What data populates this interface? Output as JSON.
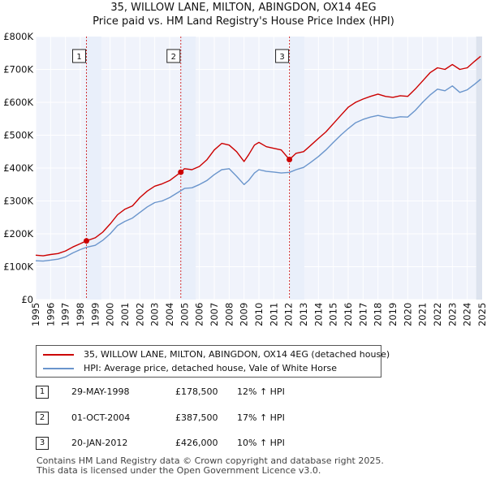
{
  "chart_data": {
    "type": "line",
    "title": "35, WILLOW LANE, MILTON, ABINGDON, OX14 4EG",
    "subtitle": "Price paid vs. HM Land Registry's House Price Index (HPI)",
    "xlim": [
      1995,
      2025
    ],
    "ylim": [
      0,
      800000
    ],
    "x_ticks": [
      "1995",
      "1996",
      "1997",
      "1998",
      "1999",
      "2000",
      "2001",
      "2002",
      "2003",
      "2004",
      "2005",
      "2006",
      "2007",
      "2008",
      "2009",
      "2010",
      "2011",
      "2012",
      "2013",
      "2014",
      "2015",
      "2016",
      "2017",
      "2018",
      "2019",
      "2020",
      "2021",
      "2022",
      "2023",
      "2024",
      "2025"
    ],
    "y_ticks": [
      {
        "value": 0,
        "label": "£0"
      },
      {
        "value": 100000,
        "label": "£100K"
      },
      {
        "value": 200000,
        "label": "£200K"
      },
      {
        "value": 300000,
        "label": "£300K"
      },
      {
        "value": 400000,
        "label": "£400K"
      },
      {
        "value": 500000,
        "label": "£500K"
      },
      {
        "value": 600000,
        "label": "£600K"
      },
      {
        "value": 700000,
        "label": "£700K"
      },
      {
        "value": 800000,
        "label": "£800K"
      }
    ],
    "series": [
      {
        "name": "35, WILLOW LANE, MILTON, ABINGDON, OX14 4EG (detached house)",
        "color": "#cc0000",
        "x": [
          1995,
          1995.5,
          1996,
          1996.5,
          1997,
          1997.5,
          1998,
          1998.41,
          1999,
          1999.5,
          2000,
          2000.5,
          2001,
          2001.5,
          2002,
          2002.5,
          2003,
          2003.5,
          2004,
          2004.75,
          2005,
          2005.5,
          2006,
          2006.5,
          2007,
          2007.5,
          2008,
          2008.5,
          2009,
          2009.3,
          2009.7,
          2010,
          2010.5,
          2011,
          2011.5,
          2012.05,
          2012.5,
          2013,
          2013.5,
          2014,
          2014.5,
          2015,
          2015.5,
          2016,
          2016.5,
          2017,
          2017.5,
          2018,
          2018.5,
          2019,
          2019.5,
          2020,
          2020.5,
          2021,
          2021.5,
          2022,
          2022.5,
          2023,
          2023.5,
          2024,
          2024.5,
          2024.9
        ],
        "values": [
          135000,
          133000,
          137000,
          140000,
          148000,
          160000,
          170000,
          178500,
          188000,
          205000,
          230000,
          258000,
          275000,
          285000,
          310000,
          330000,
          345000,
          352000,
          362000,
          387500,
          398000,
          395000,
          405000,
          425000,
          455000,
          475000,
          470000,
          450000,
          420000,
          440000,
          470000,
          478000,
          465000,
          460000,
          455000,
          426000,
          445000,
          450000,
          470000,
          490000,
          510000,
          535000,
          560000,
          585000,
          600000,
          610000,
          618000,
          625000,
          618000,
          615000,
          620000,
          618000,
          640000,
          665000,
          690000,
          705000,
          700000,
          715000,
          700000,
          705000,
          725000,
          740000
        ]
      },
      {
        "name": "HPI: Average price, detached house, Vale of White Horse",
        "color": "#6a95cc",
        "x": [
          1995,
          1995.5,
          1996,
          1996.5,
          1997,
          1997.5,
          1998,
          1998.41,
          1999,
          1999.5,
          2000,
          2000.5,
          2001,
          2001.5,
          2002,
          2002.5,
          2003,
          2003.5,
          2004,
          2004.75,
          2005,
          2005.5,
          2006,
          2006.5,
          2007,
          2007.5,
          2008,
          2008.5,
          2009,
          2009.3,
          2009.7,
          2010,
          2010.5,
          2011,
          2011.5,
          2012.05,
          2012.5,
          2013,
          2013.5,
          2014,
          2014.5,
          2015,
          2015.5,
          2016,
          2016.5,
          2017,
          2017.5,
          2018,
          2018.5,
          2019,
          2019.5,
          2020,
          2020.5,
          2021,
          2021.5,
          2022,
          2022.5,
          2023,
          2023.5,
          2024,
          2024.5,
          2024.9
        ],
        "values": [
          118000,
          117000,
          120000,
          123000,
          130000,
          142000,
          152000,
          159000,
          165000,
          180000,
          200000,
          225000,
          238000,
          248000,
          265000,
          282000,
          295000,
          300000,
          310000,
          331000,
          338000,
          340000,
          350000,
          362000,
          380000,
          395000,
          398000,
          375000,
          350000,
          362000,
          385000,
          395000,
          390000,
          388000,
          385000,
          387000,
          395000,
          402000,
          418000,
          435000,
          455000,
          478000,
          500000,
          520000,
          538000,
          548000,
          555000,
          560000,
          555000,
          552000,
          556000,
          555000,
          575000,
          600000,
          622000,
          640000,
          635000,
          650000,
          630000,
          638000,
          655000,
          670000
        ]
      }
    ],
    "sales": [
      {
        "label": "1",
        "x": 1998.41,
        "value": 178500
      },
      {
        "label": "2",
        "x": 2004.75,
        "value": 387500
      },
      {
        "label": "3",
        "x": 2012.05,
        "value": 426000
      }
    ]
  },
  "legend": {
    "property_label": "35, WILLOW LANE, MILTON, ABINGDON, OX14 4EG (detached house)",
    "hpi_label": "HPI: Average price, detached house, Vale of White Horse"
  },
  "transactions": [
    {
      "num": "1",
      "date": "29-MAY-1998",
      "price": "£178,500",
      "hpi": "12% ↑ HPI"
    },
    {
      "num": "2",
      "date": "01-OCT-2004",
      "price": "£387,500",
      "hpi": "17% ↑ HPI"
    },
    {
      "num": "3",
      "date": "20-JAN-2012",
      "price": "£426,000",
      "hpi": "10% ↑ HPI"
    }
  ],
  "footer": {
    "line1": "Contains HM Land Registry data © Crown copyright and database right 2025.",
    "line2": "This data is licensed under the Open Government Licence v3.0."
  },
  "colors": {
    "property": "#cc0000",
    "hpi": "#6a95cc",
    "shade": "#e9effa",
    "grid": "#ffffff",
    "plot_bg": "#f0f3fb"
  }
}
